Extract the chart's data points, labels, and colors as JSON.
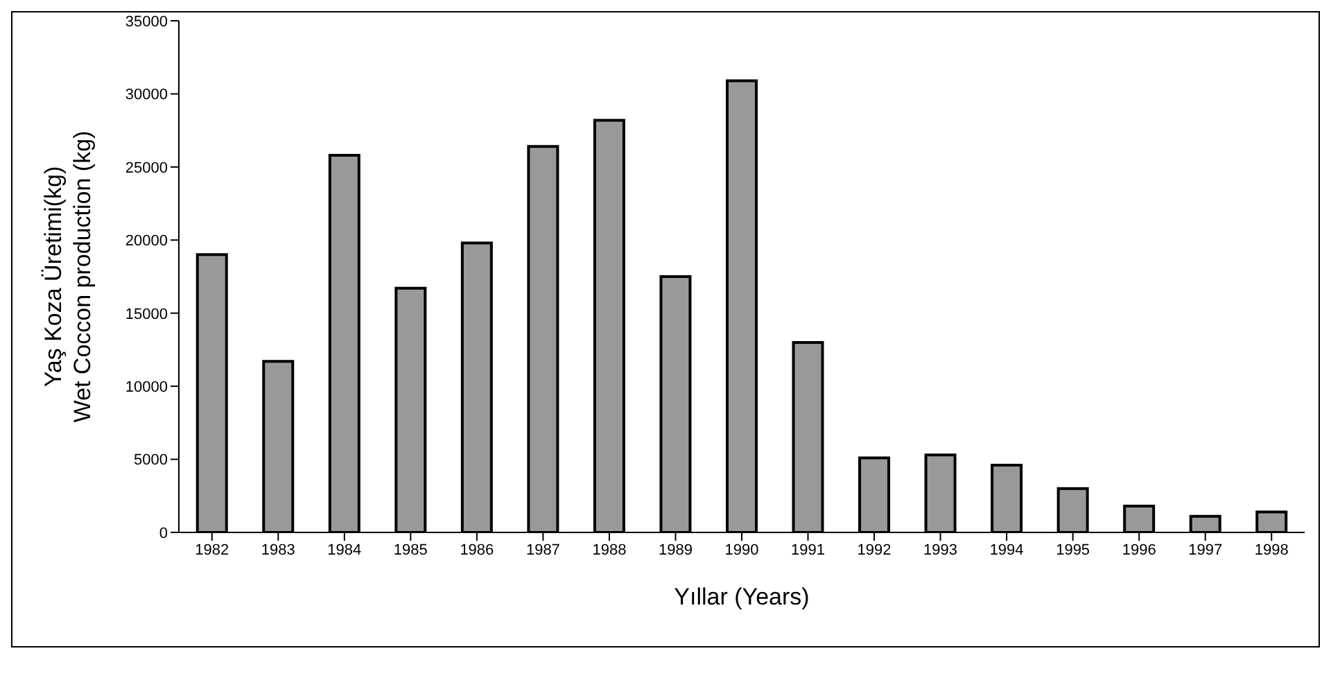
{
  "chart_data": {
    "type": "bar",
    "xlabel": "Yıllar (Years)",
    "ylabel": "Yaş Koza Üretimi(kg)\nWet Coccon production (kg)",
    "categories": [
      "1982",
      "1983",
      "1984",
      "1985",
      "1986",
      "1987",
      "1988",
      "1989",
      "1990",
      "1991",
      "1992",
      "1993",
      "1994",
      "1995",
      "1996",
      "1997",
      "1998"
    ],
    "values": [
      19000,
      11700,
      25800,
      16700,
      19800,
      26400,
      28200,
      17500,
      30900,
      13000,
      5100,
      5300,
      4600,
      3000,
      1800,
      1100,
      1400
    ],
    "color": "#999999",
    "ylim": [
      0,
      35000
    ],
    "yticks": [
      0,
      5000,
      10000,
      15000,
      20000,
      25000,
      30000,
      35000
    ],
    "grid": false,
    "legend": false
  }
}
